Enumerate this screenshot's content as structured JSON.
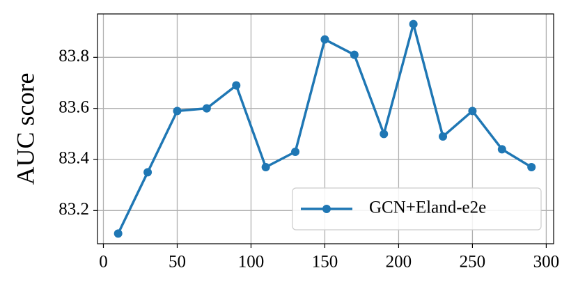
{
  "chart_data": {
    "type": "line",
    "ylabel": "AUC score",
    "x": [
      10,
      30,
      50,
      70,
      90,
      110,
      130,
      150,
      170,
      190,
      210,
      230,
      250,
      270,
      290
    ],
    "series": [
      {
        "name": "GCN+Eland-e2e",
        "color": "#1f77b4",
        "values": [
          83.11,
          83.35,
          83.59,
          83.6,
          83.69,
          83.37,
          83.43,
          83.87,
          83.81,
          83.5,
          83.93,
          83.49,
          83.59,
          83.44,
          83.37
        ]
      }
    ],
    "xlim": [
      -4,
      305
    ],
    "ylim": [
      83.07,
      83.97
    ],
    "xticks": [
      0,
      50,
      100,
      150,
      200,
      250,
      300
    ],
    "yticks": [
      83.2,
      83.4,
      83.6,
      83.8
    ],
    "grid": true,
    "legend": "lower right"
  }
}
